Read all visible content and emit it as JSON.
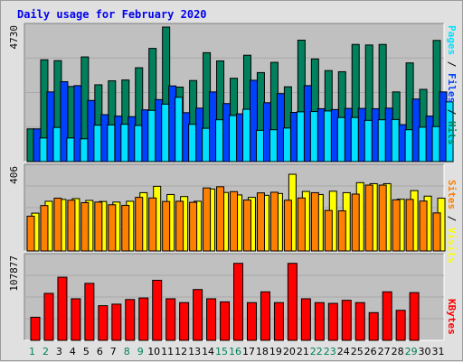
{
  "title": "Daily usage for February 2020",
  "colors": {
    "background": "#e0e0e0",
    "plot_bg": "#c0c0c0",
    "hits": "#00805c",
    "files": "#0040ff",
    "pages": "#00e0ff",
    "visits": "#ffff00",
    "sites": "#ff8000",
    "kbytes": "#ff0000",
    "weekday_label": "#000080",
    "weekend_label": "#00805c"
  },
  "axis_labels": {
    "panel1_max": "4730",
    "panel2_max": "406",
    "panel3_max": "107877"
  },
  "legend": {
    "pages": "Pages",
    "files": "Files",
    "hits": "Hits",
    "sites": "Sites",
    "visits": "Visits",
    "kbytes": "KBytes",
    "sep": " / "
  },
  "chart_data": [
    {
      "type": "bar",
      "panel": "hits-files-pages",
      "title": "Daily usage for February 2020",
      "categories": [
        "1",
        "2",
        "3",
        "4",
        "5",
        "6",
        "7",
        "8",
        "9",
        "10",
        "11",
        "12",
        "13",
        "14",
        "15",
        "16",
        "17",
        "18",
        "19",
        "20",
        "21",
        "22",
        "23",
        "24",
        "25",
        "26",
        "27",
        "28",
        "29",
        "30",
        "31"
      ],
      "weekend_days": [
        "1",
        "2",
        "8",
        "9",
        "15",
        "16",
        "22",
        "23",
        "29"
      ],
      "ylim": [
        0,
        4730
      ],
      "ylabel_max": "4730",
      "series": [
        {
          "name": "Hits",
          "color": "#00805c",
          "values": [
            1150,
            3580,
            3550,
            2640,
            3680,
            2700,
            2840,
            2870,
            3300,
            3980,
            4730,
            2620,
            2850,
            3830,
            3540,
            2930,
            3740,
            3130,
            3490,
            2630,
            4270,
            3610,
            3200,
            3160,
            4120,
            4100,
            4120,
            2450,
            3470,
            2540,
            4260
          ]
        },
        {
          "name": "Files",
          "color": "#0040ff",
          "values": [
            1150,
            2450,
            2810,
            2670,
            2150,
            1650,
            1600,
            1580,
            1820,
            2180,
            2660,
            1720,
            1880,
            2450,
            2040,
            1680,
            2860,
            2070,
            2390,
            1730,
            2670,
            1860,
            1830,
            1870,
            1870,
            1860,
            1880,
            1300,
            2200,
            1600,
            2450
          ]
        },
        {
          "name": "Pages",
          "color": "#00e0ff",
          "values": [
            830,
            1200,
            830,
            800,
            1280,
            1290,
            1310,
            1270,
            1800,
            2020,
            2260,
            1310,
            1170,
            1470,
            1620,
            1840,
            1100,
            1120,
            1180,
            1750,
            1760,
            1780,
            1550,
            1550,
            1450,
            1470,
            1480,
            1120,
            1210,
            1230,
            2100
          ]
        }
      ]
    },
    {
      "type": "bar",
      "panel": "sites-visits",
      "categories": [
        "1",
        "2",
        "3",
        "4",
        "5",
        "6",
        "7",
        "8",
        "9",
        "10",
        "11",
        "12",
        "13",
        "14",
        "15",
        "16",
        "17",
        "18",
        "19",
        "20",
        "21",
        "22",
        "23",
        "24",
        "25",
        "26",
        "27",
        "28",
        "29",
        "30",
        "31"
      ],
      "ylim": [
        0,
        406
      ],
      "ylabel_max": "406",
      "series": [
        {
          "name": "Visits",
          "color": "#ffff00",
          "values": [
            185,
            243,
            252,
            256,
            247,
            242,
            239,
            243,
            285,
            316,
            276,
            266,
            243,
            303,
            286,
            274,
            262,
            272,
            281,
            375,
            291,
            276,
            292,
            285,
            334,
            329,
            329,
            253,
            295,
            268,
            258
          ]
        },
        {
          "name": "Sites",
          "color": "#ff8000",
          "values": [
            170,
            222,
            258,
            248,
            236,
            239,
            226,
            223,
            262,
            259,
            242,
            243,
            238,
            308,
            314,
            290,
            249,
            284,
            287,
            248,
            259,
            285,
            198,
            196,
            278,
            322,
            322,
            250,
            252,
            244,
            186
          ]
        }
      ]
    },
    {
      "type": "bar",
      "panel": "kbytes",
      "categories": [
        "1",
        "2",
        "3",
        "4",
        "5",
        "6",
        "7",
        "8",
        "9",
        "10",
        "11",
        "12",
        "13",
        "14",
        "15",
        "16",
        "17",
        "18",
        "19",
        "20",
        "21",
        "22",
        "23",
        "24",
        "25",
        "26",
        "27",
        "28",
        "29",
        "30",
        "31"
      ],
      "ylim": [
        0,
        107877
      ],
      "ylabel_max": "107877",
      "series": [
        {
          "name": "KBytes",
          "color": "#ff0000",
          "values": [
            30000,
            61000,
            82000,
            54000,
            74000,
            45000,
            47000,
            53000,
            55000,
            78000,
            54000,
            49000,
            66000,
            54000,
            50000,
            100000,
            49000,
            63000,
            49000,
            100000,
            54000,
            49000,
            48000,
            52000,
            49000,
            36000,
            63000,
            39000,
            62000,
            0,
            0
          ]
        }
      ]
    }
  ]
}
